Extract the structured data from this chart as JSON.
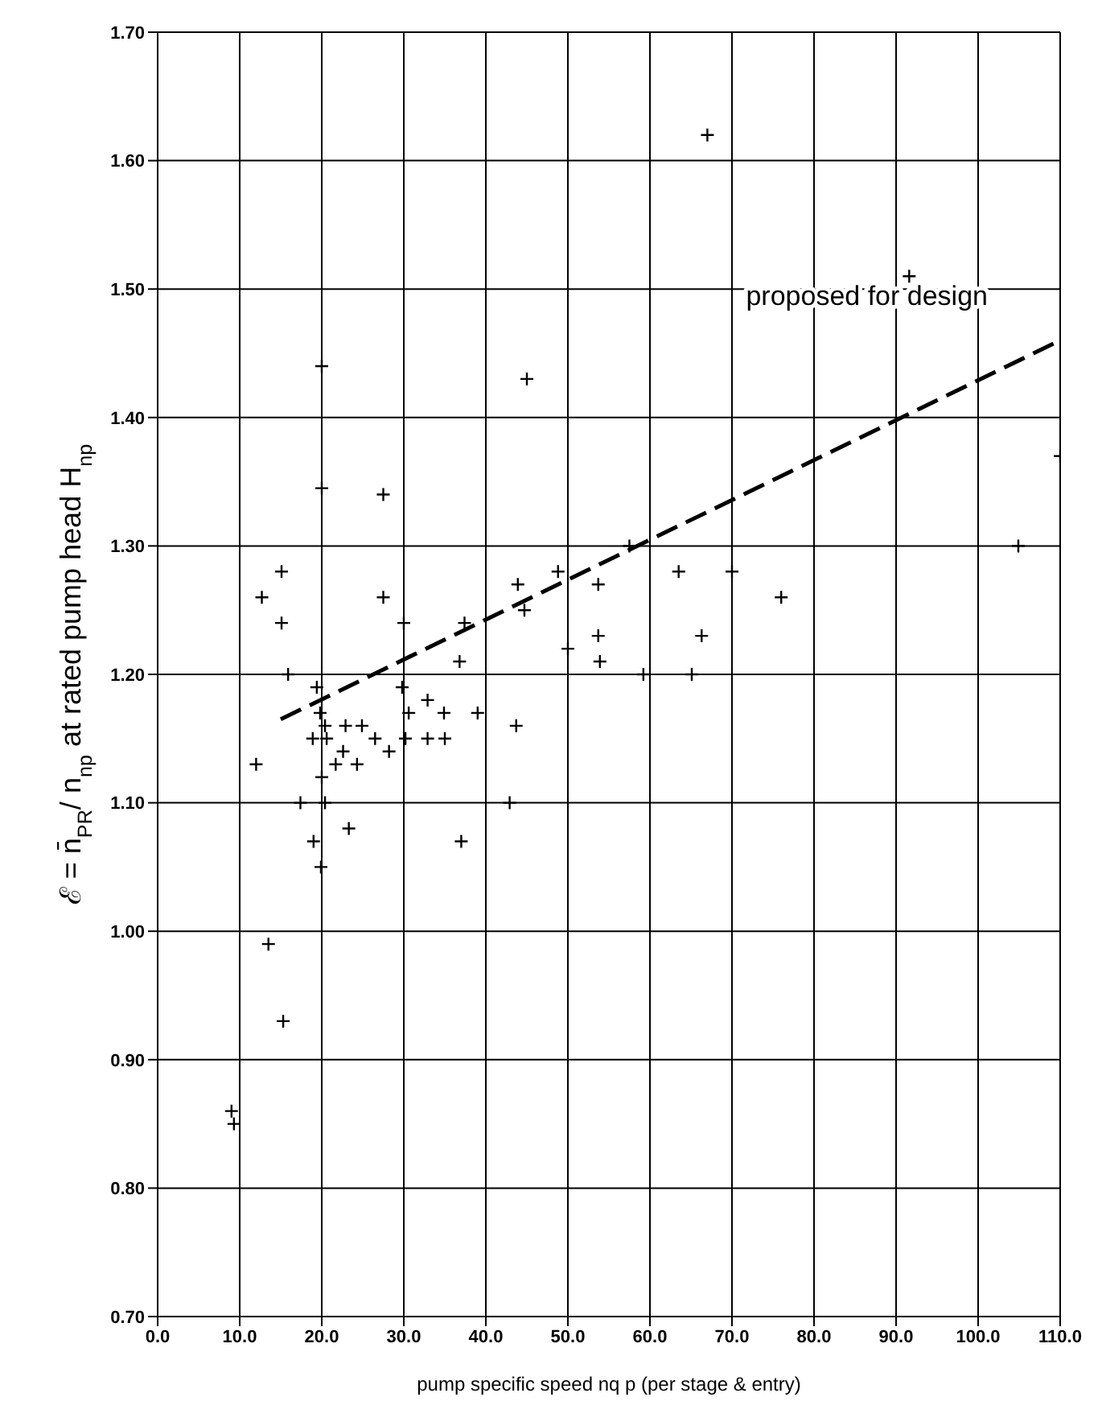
{
  "chart_data": {
    "type": "scatter",
    "xlabel": "pump specific speed nq p (per stage & entry)",
    "ylabel": "ℰ = n̄$_{PR}$/ n$_{np}$ at  rated pump head  H$_{np}$",
    "xlim": [
      0,
      110
    ],
    "ylim": [
      0.7,
      1.7
    ],
    "xticks": [
      {
        "value": 0,
        "label": "0.0"
      },
      {
        "value": 10,
        "label": "10.0"
      },
      {
        "value": 20,
        "label": "20.0"
      },
      {
        "value": 30,
        "label": "30.0"
      },
      {
        "value": 40,
        "label": "40.0"
      },
      {
        "value": 50,
        "label": "50.0"
      },
      {
        "value": 60,
        "label": "60.0"
      },
      {
        "value": 70,
        "label": "70.0"
      },
      {
        "value": 80,
        "label": "80.0"
      },
      {
        "value": 90,
        "label": "90.0"
      },
      {
        "value": 100,
        "label": "100.0"
      },
      {
        "value": 110,
        "label": "110.0"
      }
    ],
    "yticks": [
      {
        "value": 0.7,
        "label": "0.70"
      },
      {
        "value": 0.8,
        "label": "0.80"
      },
      {
        "value": 0.9,
        "label": "0.90"
      },
      {
        "value": 1.0,
        "label": "1.00"
      },
      {
        "value": 1.1,
        "label": "1.10"
      },
      {
        "value": 1.2,
        "label": "1.20"
      },
      {
        "value": 1.3,
        "label": "1.30"
      },
      {
        "value": 1.4,
        "label": "1.40"
      },
      {
        "value": 1.5,
        "label": "1.50"
      },
      {
        "value": 1.6,
        "label": "1.60"
      },
      {
        "value": 1.7,
        "label": "1.70"
      }
    ],
    "grid": true,
    "series": [
      {
        "color": "#000000",
        "marker": "cross",
        "x": [
          15.1,
          12.7,
          15.1,
          15.9,
          27.5,
          30,
          37.4,
          36.8,
          19.4,
          29.8,
          19.8,
          20.4,
          22.9,
          24.9,
          30.6,
          32.9,
          34.9,
          39,
          18.9,
          20.6,
          26.5,
          30.2,
          32.9,
          35,
          22.6,
          28.2,
          12,
          21.7,
          24.3,
          20,
          17.4,
          20.4,
          23.3,
          19,
          37,
          19.9,
          13.5,
          15.3,
          9,
          9.3,
          43.9,
          44.7,
          48.8,
          53.7,
          53.7,
          53.9,
          50,
          63.5,
          66.3,
          70,
          76,
          59.2,
          65.1,
          43.7,
          42.9,
          91.6,
          110,
          104.9,
          20,
          20,
          45,
          27.5,
          57.5,
          67
        ],
        "values": [
          1.28,
          1.26,
          1.24,
          1.2,
          1.26,
          1.24,
          1.24,
          1.21,
          1.19,
          1.19,
          1.17,
          1.16,
          1.16,
          1.16,
          1.17,
          1.18,
          1.17,
          1.17,
          1.15,
          1.15,
          1.15,
          1.15,
          1.15,
          1.15,
          1.14,
          1.14,
          1.13,
          1.13,
          1.13,
          1.12,
          1.1,
          1.1,
          1.08,
          1.07,
          1.07,
          1.05,
          0.99,
          0.93,
          0.86,
          0.85,
          1.27,
          1.25,
          1.28,
          1.27,
          1.23,
          1.21,
          1.22,
          1.28,
          1.23,
          1.28,
          1.26,
          1.2,
          1.2,
          1.16,
          1.1,
          1.51,
          1.37,
          1.3,
          1.44,
          1.345,
          1.43,
          1.34,
          1.3,
          1.62
        ]
      },
      {
        "type": "line",
        "name": "proposed for design",
        "color": "#000000",
        "line_style": "dashed",
        "x": [
          15,
          110
        ],
        "values": [
          1.165,
          1.46
        ]
      }
    ]
  }
}
